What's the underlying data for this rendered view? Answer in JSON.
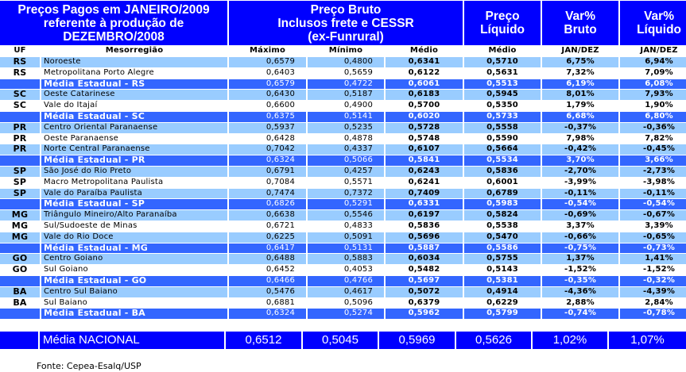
{
  "header": {
    "title": [
      "Preços Pagos em JANEIRO/2009",
      "referente à produção de",
      "DEZEMBRO/2008"
    ],
    "bruto": [
      "Preço Bruto",
      "Inclusos frete e CESSR",
      "(ex-Funrural)"
    ],
    "liquido": [
      "Preço",
      "Líquido"
    ],
    "var_bruto": [
      "Var%",
      "Bruto"
    ],
    "var_liquido": [
      "Var%",
      "Líquido"
    ]
  },
  "subheader": [
    "UF",
    "Mesorregião",
    "Máximo",
    "Mínimo",
    "Médio",
    "Médio",
    "JAN/DEZ",
    "JAN/DEZ"
  ],
  "rows": [
    {
      "t": "lt",
      "uf": "RS",
      "m": "Noroeste",
      "max": "0,6579",
      "min": "0,4800",
      "med": "0,6341",
      "liq": "0,5710",
      "vb": "6,75%",
      "vl": "6,94%"
    },
    {
      "t": "wt",
      "uf": "RS",
      "m": "Metropolitana Porto Alegre",
      "max": "0,6403",
      "min": "0,5659",
      "med": "0,6122",
      "liq": "0,5631",
      "vb": "7,32%",
      "vl": "7,09%"
    },
    {
      "t": "st",
      "uf": "",
      "m": "Média Estadual - RS",
      "max": "0,6579",
      "min": "0,4722",
      "med": "0,6061",
      "liq": "0,5513",
      "vb": "6,19%",
      "vl": "6,08%"
    },
    {
      "t": "lt",
      "uf": "SC",
      "m": "Oeste Catarinese",
      "max": "0,6430",
      "min": "0,5187",
      "med": "0,6183",
      "liq": "0,5945",
      "vb": "8,01%",
      "vl": "7,93%"
    },
    {
      "t": "wt",
      "uf": "SC",
      "m": "Vale do Itajaí",
      "max": "0,6600",
      "min": "0,4900",
      "med": "0,5700",
      "liq": "0,5350",
      "vb": "1,79%",
      "vl": "1,90%"
    },
    {
      "t": "st",
      "uf": "",
      "m": "Média Estadual - SC",
      "max": "0,6375",
      "min": "0,5141",
      "med": "0,6020",
      "liq": "0,5733",
      "vb": "6,68%",
      "vl": "6,80%"
    },
    {
      "t": "lt",
      "uf": "PR",
      "m": "Centro Oriental Paranaense",
      "max": "0,5937",
      "min": "0,5235",
      "med": "0,5728",
      "liq": "0,5558",
      "vb": "-0,37%",
      "vl": "-0,36%"
    },
    {
      "t": "wt",
      "uf": "PR",
      "m": "Oeste Paranaense",
      "max": "0,6428",
      "min": "0,4878",
      "med": "0,5748",
      "liq": "0,5590",
      "vb": "7,98%",
      "vl": "7,82%"
    },
    {
      "t": "lt",
      "uf": "PR",
      "m": "Norte Central Paranaense",
      "max": "0,7042",
      "min": "0,4337",
      "med": "0,6107",
      "liq": "0,5664",
      "vb": "-0,42%",
      "vl": "-0,45%"
    },
    {
      "t": "st",
      "uf": "",
      "m": "Média Estadual - PR",
      "max": "0,6324",
      "min": "0,5066",
      "med": "0,5841",
      "liq": "0,5534",
      "vb": "3,70%",
      "vl": "3,66%"
    },
    {
      "t": "lt",
      "uf": "SP",
      "m": "São José do Rio Preto",
      "max": "0,6791",
      "min": "0,4257",
      "med": "0,6243",
      "liq": "0,5836",
      "vb": "-2,70%",
      "vl": "-2,73%"
    },
    {
      "t": "wt",
      "uf": "SP",
      "m": "Macro Metropolitana Paulista",
      "max": "0,7084",
      "min": "0,5571",
      "med": "0,6241",
      "liq": "0,6001",
      "vb": "-3,99%",
      "vl": "-3,98%"
    },
    {
      "t": "lt",
      "uf": "SP",
      "m": "Vale do Paraíba Paulista",
      "max": "0,7474",
      "min": "0,7372",
      "med": "0,7409",
      "liq": "0,6789",
      "vb": "-0,11%",
      "vl": "-0,11%"
    },
    {
      "t": "st",
      "uf": "",
      "m": "Média Estadual - SP",
      "max": "0,6826",
      "min": "0,5291",
      "med": "0,6331",
      "liq": "0,5983",
      "vb": "-0,54%",
      "vl": "-0,54%"
    },
    {
      "t": "lt",
      "uf": "MG",
      "m": "Triângulo Mineiro/Alto Paranaíba",
      "max": "0,6638",
      "min": "0,5546",
      "med": "0,6197",
      "liq": "0,5824",
      "vb": "-0,69%",
      "vl": "-0,67%"
    },
    {
      "t": "wt",
      "uf": "MG",
      "m": "Sul/Sudoeste de Minas",
      "max": "0,6721",
      "min": "0,4833",
      "med": "0,5836",
      "liq": "0,5538",
      "vb": "3,37%",
      "vl": "3,39%"
    },
    {
      "t": "lt",
      "uf": "MG",
      "m": "Vale do Rio Doce",
      "max": "0,6225",
      "min": "0,5091",
      "med": "0,5696",
      "liq": "0,5470",
      "vb": "-0,66%",
      "vl": "-0,65%"
    },
    {
      "t": "st",
      "uf": "",
      "m": "Média Estadual - MG",
      "max": "0,6417",
      "min": "0,5131",
      "med": "0,5887",
      "liq": "0,5586",
      "vb": "-0,75%",
      "vl": "-0,73%"
    },
    {
      "t": "lt",
      "uf": "GO",
      "m": "Centro Goiano",
      "max": "0,6488",
      "min": "0,5883",
      "med": "0,6034",
      "liq": "0,5755",
      "vb": "1,37%",
      "vl": "1,41%"
    },
    {
      "t": "wt",
      "uf": "GO",
      "m": "Sul Goiano",
      "max": "0,6452",
      "min": "0,4053",
      "med": "0,5482",
      "liq": "0,5143",
      "vb": "-1,52%",
      "vl": "-1,52%"
    },
    {
      "t": "st",
      "uf": "",
      "m": "Média Estadual - GO",
      "max": "0,6466",
      "min": "0,4766",
      "med": "0,5697",
      "liq": "0,5381",
      "vb": "-0,35%",
      "vl": "-0,32%"
    },
    {
      "t": "lt",
      "uf": "BA",
      "m": "Centro Sul Baiano",
      "max": "0,5476",
      "min": "0,4617",
      "med": "0,5072",
      "liq": "0,4914",
      "vb": "-4,36%",
      "vl": "-4,39%"
    },
    {
      "t": "wt",
      "uf": "BA",
      "m": "Sul Baiano",
      "max": "0,6881",
      "min": "0,5096",
      "med": "0,6379",
      "liq": "0,6229",
      "vb": "2,88%",
      "vl": "2,84%"
    },
    {
      "t": "st",
      "uf": "",
      "m": "Média Estadual - BA",
      "max": "0,6324",
      "min": "0,5274",
      "med": "0,5962",
      "liq": "0,5799",
      "vb": "-0,74%",
      "vl": "-0,78%"
    }
  ],
  "national": {
    "label": "Média NACIONAL",
    "max": "0,6512",
    "min": "0,5045",
    "med": "0,5969",
    "liq": "0,5626",
    "vb": "1,02%",
    "vl": "1,07%"
  },
  "fonte": "Fonte: Cepea-Esalq/USP",
  "colors": {
    "header": "#0000ff",
    "light": "#99ccff",
    "strong": "#3366ff"
  }
}
